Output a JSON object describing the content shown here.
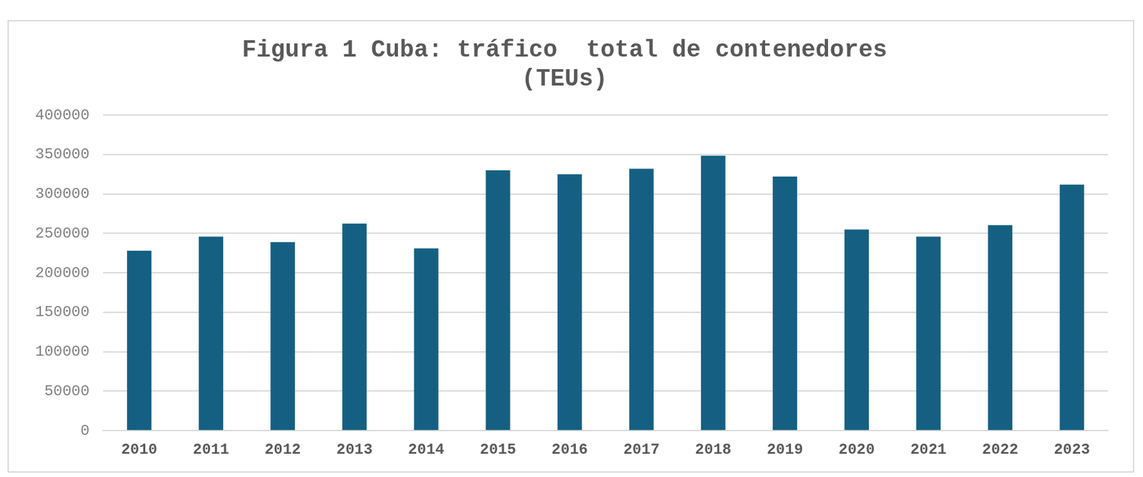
{
  "chart_data": {
    "type": "bar",
    "title": "Figura 1 Cuba: tráfico  total de contenedores (TEUs)",
    "categories": [
      "2010",
      "2011",
      "2012",
      "2013",
      "2014",
      "2015",
      "2016",
      "2017",
      "2018",
      "2019",
      "2020",
      "2021",
      "2022",
      "2023"
    ],
    "values": [
      228000,
      246000,
      239000,
      262500,
      231000,
      330000,
      325000,
      332000,
      348500,
      322000,
      255000,
      246000,
      260500,
      312000
    ],
    "color": "#156082",
    "ylim": [
      0,
      400000
    ],
    "yticks": [
      0,
      50000,
      100000,
      150000,
      200000,
      250000,
      300000,
      350000,
      400000
    ],
    "grid": true
  }
}
